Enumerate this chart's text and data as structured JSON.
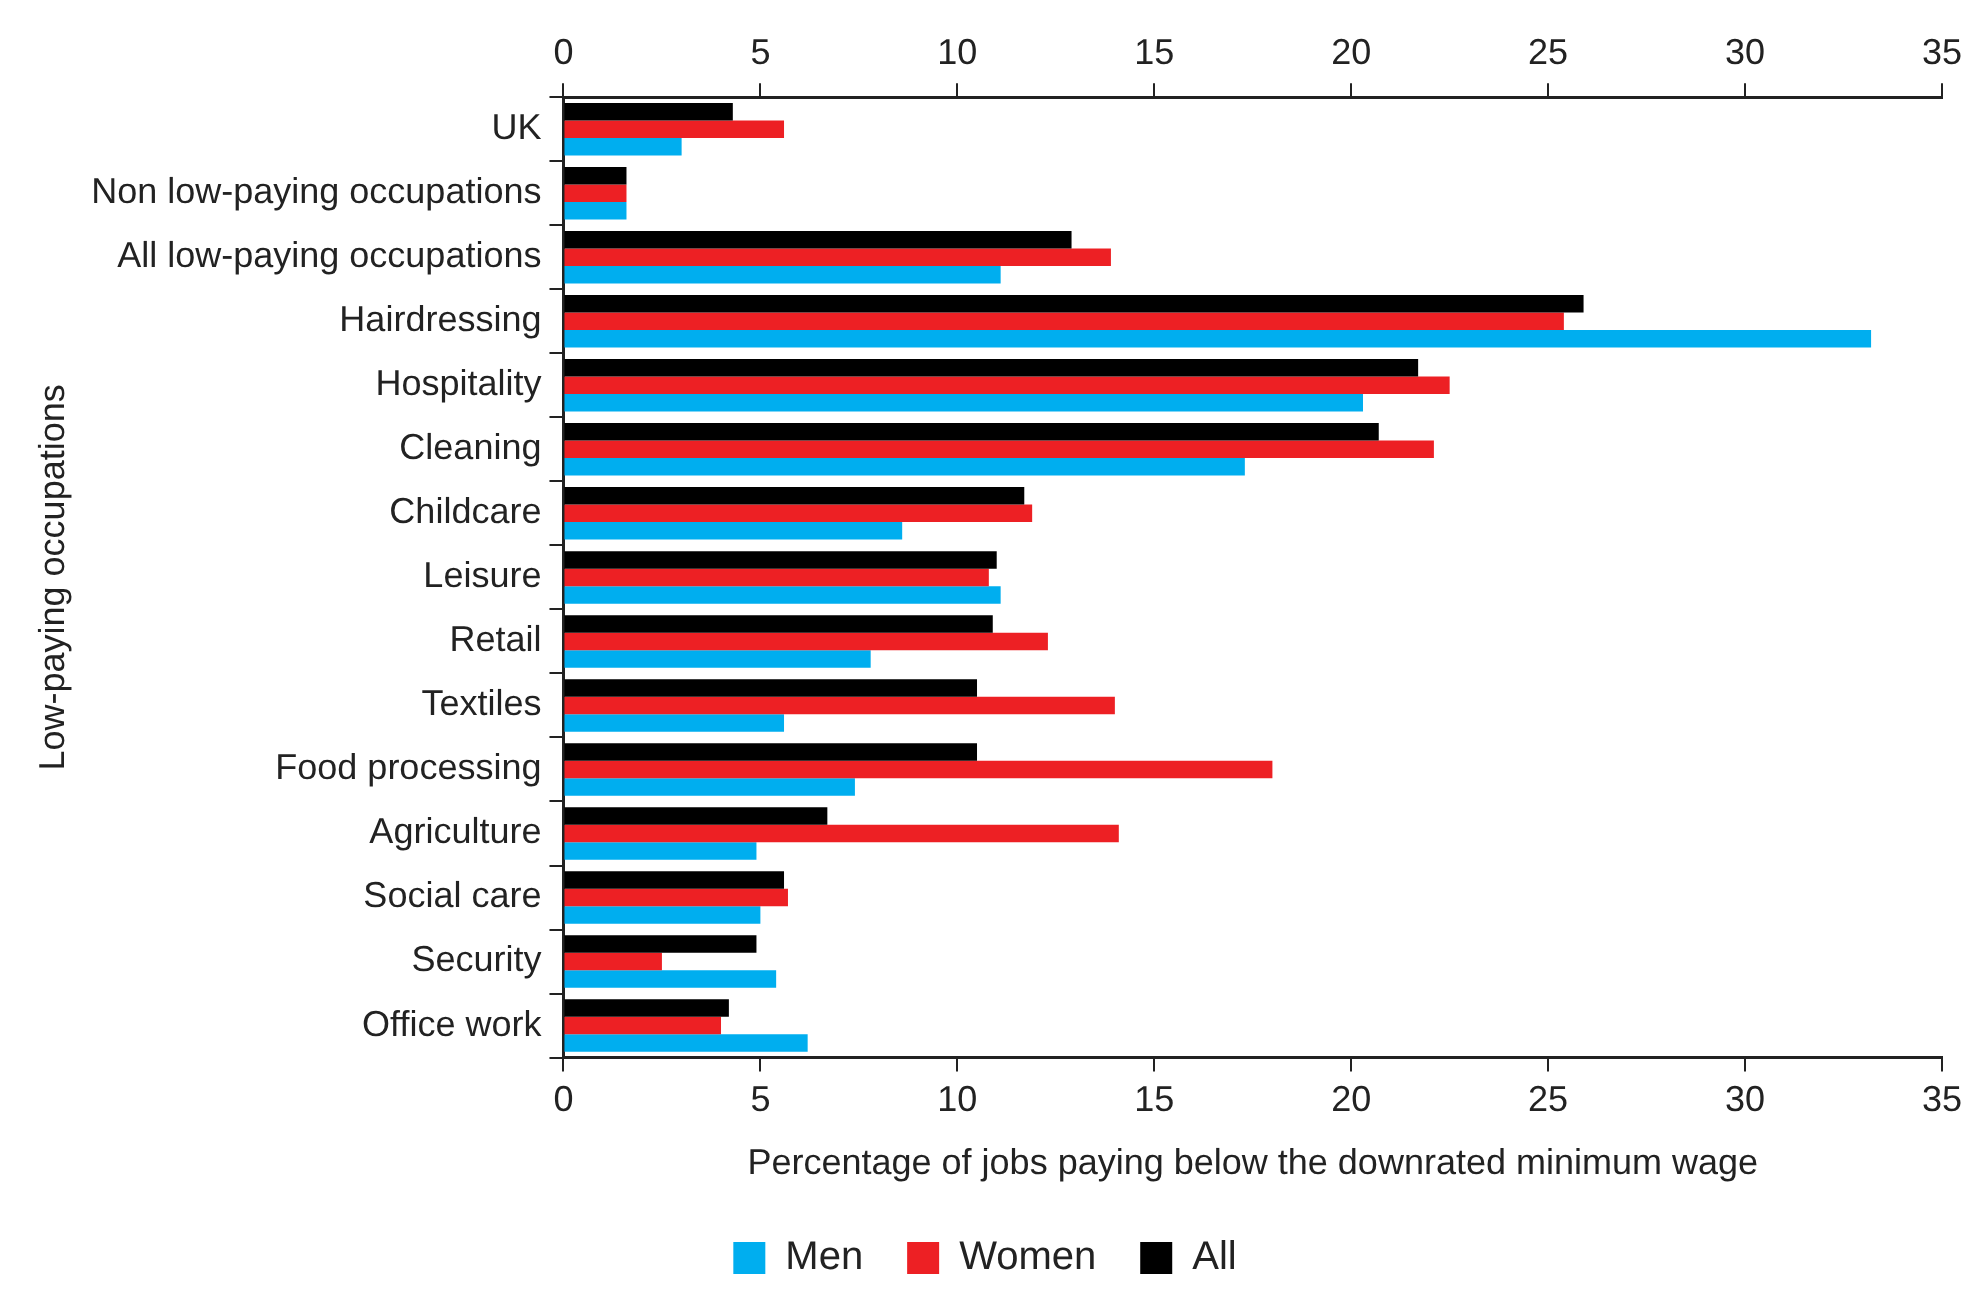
{
  "chart_data": {
    "type": "bar",
    "orientation": "horizontal",
    "xlabel": "Percentage of jobs paying below the downrated minimum wage",
    "ylabel": "Low-paying occupations",
    "categories": [
      "UK",
      "Non low-paying occupations",
      "All low-paying occupations",
      "Hairdressing",
      "Hospitality",
      "Cleaning",
      "Childcare",
      "Leisure",
      "Retail",
      "Textiles",
      "Food processing",
      "Agriculture",
      "Social care",
      "Security",
      "Office work"
    ],
    "series": [
      {
        "name": "Men",
        "color": "#00aeef",
        "values": [
          3.0,
          1.6,
          11.1,
          33.2,
          20.3,
          17.3,
          8.6,
          11.1,
          7.8,
          5.6,
          7.4,
          4.9,
          5.0,
          5.4,
          6.2
        ]
      },
      {
        "name": "Women",
        "color": "#ed2024",
        "values": [
          5.6,
          1.6,
          13.9,
          25.4,
          22.5,
          22.1,
          11.9,
          10.8,
          12.3,
          14.0,
          18.0,
          14.1,
          5.7,
          2.5,
          4.0
        ]
      },
      {
        "name": "All",
        "color": "#000000",
        "values": [
          4.3,
          1.6,
          12.9,
          25.9,
          21.7,
          20.7,
          11.7,
          11.0,
          10.9,
          10.5,
          10.5,
          6.7,
          5.6,
          4.9,
          4.2
        ]
      }
    ],
    "xlim": [
      0,
      35
    ],
    "xticks": [
      0,
      5,
      10,
      15,
      20,
      25,
      30,
      35
    ],
    "x2lim": [
      0,
      35
    ],
    "x2ticks": [
      0,
      5,
      10,
      15,
      20,
      25,
      30,
      35
    ],
    "grid": false,
    "legend": "bottom"
  }
}
